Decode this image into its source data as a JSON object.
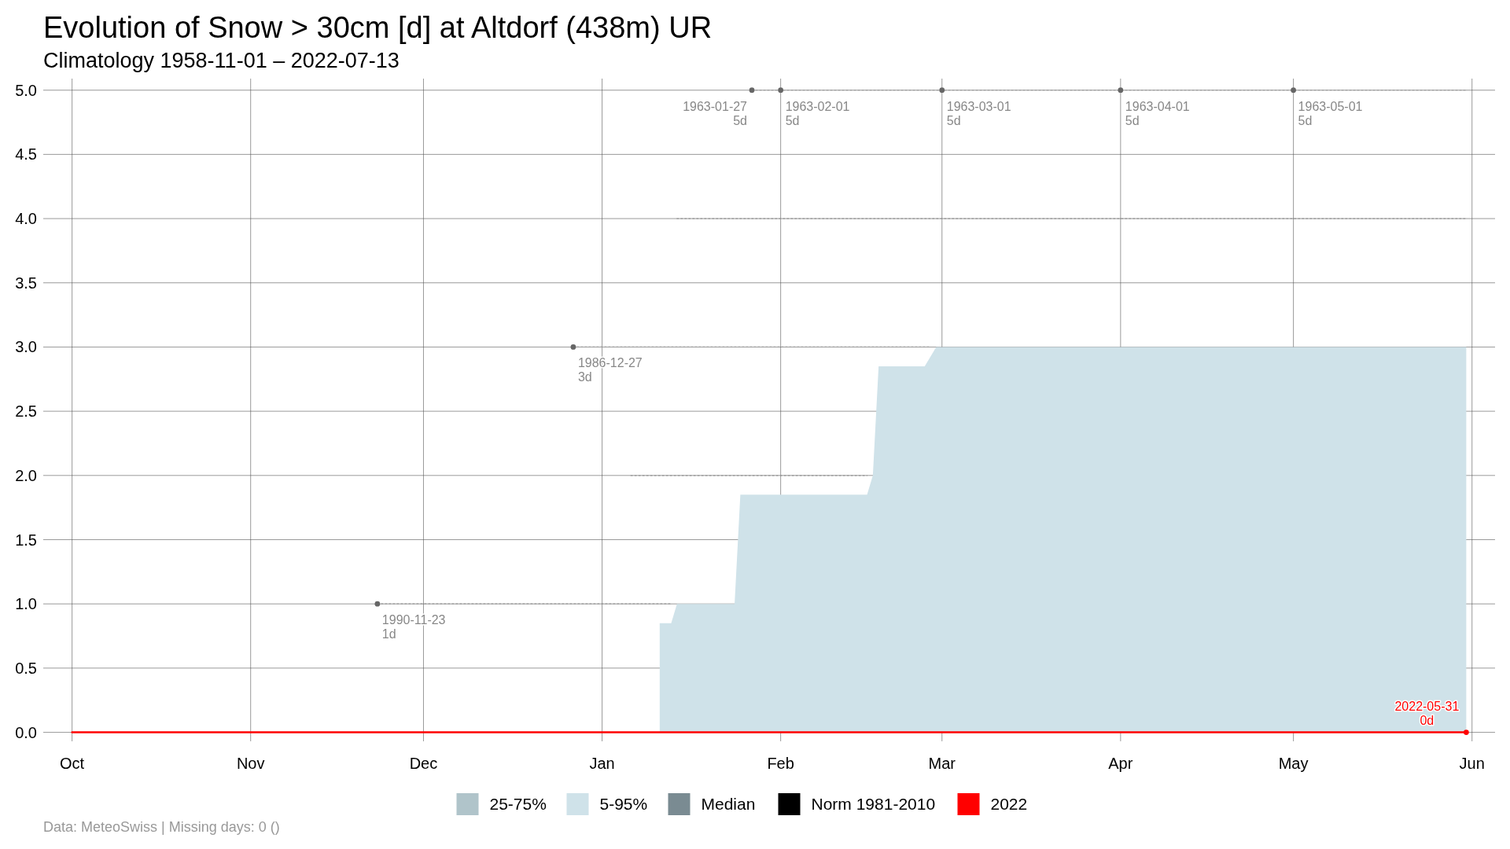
{
  "chart_data": {
    "type": "line",
    "title": "Evolution of Snow > 30cm [d] at Altdorf (438m) UR",
    "subtitle": "Climatology 1958-11-01 – 2022-07-13",
    "xlim": [
      "2021-09-26",
      "2022-06-05"
    ],
    "ylim": [
      -0.07,
      5.09
    ],
    "xticks": [
      {
        "value": "2021-10-01",
        "label": "Oct"
      },
      {
        "value": "2021-11-01",
        "label": "Nov"
      },
      {
        "value": "2021-12-01",
        "label": "Dec"
      },
      {
        "value": "2022-01-01",
        "label": "Jan"
      },
      {
        "value": "2022-02-01",
        "label": "Feb"
      },
      {
        "value": "2022-03-01",
        "label": "Mar"
      },
      {
        "value": "2022-04-01",
        "label": "Apr"
      },
      {
        "value": "2022-05-01",
        "label": "May"
      },
      {
        "value": "2022-06-01",
        "label": "Jun"
      }
    ],
    "yticks": [
      {
        "value": 0,
        "label": "0.0"
      },
      {
        "value": 0.5,
        "label": "0.5"
      },
      {
        "value": 1,
        "label": "1.0"
      },
      {
        "value": 1.5,
        "label": "1.5"
      },
      {
        "value": 2,
        "label": "2.0"
      },
      {
        "value": 2.5,
        "label": "2.5"
      },
      {
        "value": 3,
        "label": "3.0"
      },
      {
        "value": 3.5,
        "label": "3.5"
      },
      {
        "value": 4,
        "label": "4.0"
      },
      {
        "value": 4.5,
        "label": "4.5"
      },
      {
        "value": 5,
        "label": "5.0"
      }
    ],
    "grid": true,
    "legend": "bottom",
    "series": [
      {
        "name": "25-75%",
        "type": "area",
        "color": "#b0c4ca"
      },
      {
        "name": "5-95%",
        "type": "area",
        "color": "#cfe2e9",
        "x": [
          "2021-10-01",
          "2022-01-11",
          "2022-01-11",
          "2022-01-13",
          "2022-01-14",
          "2022-01-24",
          "2022-01-25",
          "2022-02-16",
          "2022-02-17",
          "2022-02-18",
          "2022-02-26",
          "2022-02-28",
          "2022-05-31"
        ],
        "values": [
          0,
          0,
          0.85,
          0.85,
          1,
          1,
          1.85,
          1.85,
          2,
          2.85,
          2.85,
          3,
          3
        ]
      },
      {
        "name": "Median",
        "color": "#7a8b92"
      },
      {
        "name": "Norm 1981-2010",
        "color": "#000000"
      },
      {
        "color": "#999999",
        "line_style": "dotted",
        "x": [
          "2021-11-23",
          "2022-01-13"
        ],
        "values": [
          1,
          1
        ]
      },
      {
        "color": "#999999",
        "line_style": "dotted",
        "x": [
          "2022-01-06",
          "2022-02-16"
        ],
        "values": [
          2,
          2
        ]
      },
      {
        "color": "#999999",
        "line_style": "dotted",
        "x": [
          "2021-12-27",
          "2022-02-27"
        ],
        "values": [
          3,
          3
        ]
      },
      {
        "color": "#999999",
        "line_style": "dotted",
        "x": [
          "2022-01-14",
          "2022-05-31"
        ],
        "values": [
          4,
          4
        ]
      },
      {
        "color": "#999999",
        "line_style": "dotted",
        "x": [
          "2022-01-27",
          "2022-05-31"
        ],
        "values": [
          5,
          5
        ]
      },
      {
        "type": "scatter",
        "color": "#666666",
        "marker": "circle",
        "x": [
          "2021-11-23",
          "2021-12-27",
          "2022-01-27",
          "2022-02-01",
          "2022-03-01",
          "2022-04-01",
          "2022-05-01"
        ],
        "values": [
          1,
          3,
          5,
          5,
          5,
          5,
          5
        ]
      },
      {
        "name": "2022",
        "color": "#ff0000",
        "x": [
          "2021-10-01",
          "2022-05-31"
        ],
        "values": [
          0,
          0
        ]
      },
      {
        "type": "scatter",
        "color": "#ff0000",
        "marker": "circle",
        "x": [
          "2022-05-31"
        ],
        "values": [
          0
        ]
      }
    ],
    "annotations": [
      {
        "text": "1990-11-23\n1d",
        "x": "2021-11-23",
        "y": 1
      },
      {
        "text": "1986-12-27\n3d",
        "x": "2021-12-27",
        "y": 3
      },
      {
        "text": "1963-01-27\n5d",
        "x": "2022-01-27",
        "y": 5
      },
      {
        "text": "1963-02-01\n5d",
        "x": "2022-02-01",
        "y": 5
      },
      {
        "text": "1963-03-01\n5d",
        "x": "2022-03-01",
        "y": 5
      },
      {
        "text": "1963-04-01\n5d",
        "x": "2022-04-01",
        "y": 5
      },
      {
        "text": "1963-05-01\n5d",
        "x": "2022-05-01",
        "y": 5
      },
      {
        "text": "2022-05-31\n0d",
        "x": "2022-05-31",
        "y": 0
      },
      "Data: MeteoSwiss | Missing days: 0 ()"
    ]
  }
}
